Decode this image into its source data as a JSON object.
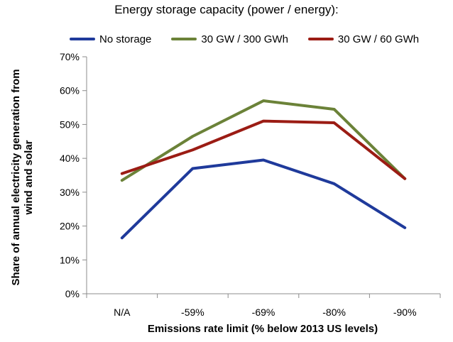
{
  "chart_data": {
    "type": "line",
    "title": "Energy storage capacity (power / energy):",
    "xlabel": "Emissions rate limit (% below 2013 US levels)",
    "ylabel": "Share of annual electricity generation from wind and solar",
    "categories": [
      "N/A",
      "-59%",
      "-69%",
      "-80%",
      "-90%"
    ],
    "ylim": [
      0,
      70
    ],
    "yticks": [
      0,
      10,
      20,
      30,
      40,
      50,
      60,
      70
    ],
    "ytick_labels": [
      "0%",
      "10%",
      "20%",
      "30%",
      "40%",
      "50%",
      "60%",
      "70%"
    ],
    "grid": false,
    "legend_position": "top",
    "series": [
      {
        "name": "No storage",
        "color": "#1f3a9b",
        "values": [
          16.5,
          37,
          39.5,
          32.5,
          19.5
        ]
      },
      {
        "name": "30 GW / 300 GWh",
        "color": "#6b8238",
        "values": [
          33.5,
          46.5,
          57,
          54.5,
          34
        ]
      },
      {
        "name": "30 GW / 60 GWh",
        "color": "#9b1c14",
        "values": [
          35.5,
          42.5,
          51,
          50.5,
          34
        ]
      }
    ]
  }
}
